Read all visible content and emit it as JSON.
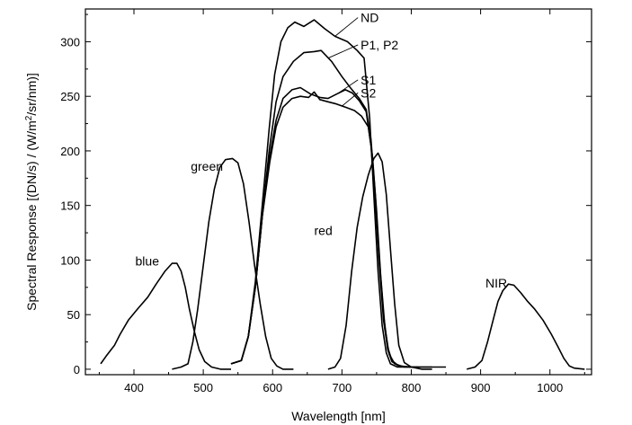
{
  "chart_data": {
    "type": "line",
    "xlabel": "Wavelength [nm]",
    "ylabel_parts": [
      "Spectral Response [(DN/s) / (W/m",
      "2",
      "/sr/nm)]"
    ],
    "xlim": [
      330,
      1060
    ],
    "ylim": [
      -5,
      330
    ],
    "xticks": [
      400,
      500,
      600,
      700,
      800,
      900,
      1000
    ],
    "yticks": [
      0,
      50,
      100,
      150,
      200,
      250,
      300
    ],
    "grid": false,
    "legend": "none",
    "color": "#000000",
    "series": [
      {
        "name": "blue",
        "points": [
          [
            352,
            5
          ],
          [
            360,
            12
          ],
          [
            372,
            22
          ],
          [
            380,
            32
          ],
          [
            392,
            45
          ],
          [
            405,
            55
          ],
          [
            420,
            66
          ],
          [
            432,
            78
          ],
          [
            445,
            90
          ],
          [
            455,
            97
          ],
          [
            462,
            97
          ],
          [
            468,
            90
          ],
          [
            474,
            75
          ],
          [
            480,
            55
          ],
          [
            487,
            35
          ],
          [
            494,
            18
          ],
          [
            502,
            7
          ],
          [
            512,
            2
          ],
          [
            525,
            0
          ],
          [
            540,
            0
          ]
        ]
      },
      {
        "name": "green",
        "points": [
          [
            455,
            0
          ],
          [
            468,
            2
          ],
          [
            478,
            5
          ],
          [
            485,
            25
          ],
          [
            492,
            55
          ],
          [
            500,
            95
          ],
          [
            508,
            135
          ],
          [
            516,
            165
          ],
          [
            524,
            185
          ],
          [
            532,
            192
          ],
          [
            542,
            193
          ],
          [
            550,
            189
          ],
          [
            558,
            170
          ],
          [
            566,
            135
          ],
          [
            574,
            95
          ],
          [
            582,
            60
          ],
          [
            590,
            30
          ],
          [
            598,
            10
          ],
          [
            606,
            3
          ],
          [
            615,
            0
          ],
          [
            630,
            0
          ]
        ]
      },
      {
        "name": "ND",
        "points": [
          [
            540,
            5
          ],
          [
            555,
            8
          ],
          [
            565,
            30
          ],
          [
            575,
            80
          ],
          [
            585,
            150
          ],
          [
            595,
            220
          ],
          [
            603,
            270
          ],
          [
            612,
            300
          ],
          [
            622,
            313
          ],
          [
            632,
            318
          ],
          [
            645,
            314
          ],
          [
            660,
            320
          ],
          [
            675,
            312
          ],
          [
            690,
            305
          ],
          [
            708,
            300
          ],
          [
            722,
            292
          ],
          [
            732,
            285
          ],
          [
            740,
            230
          ],
          [
            746,
            160
          ],
          [
            752,
            90
          ],
          [
            758,
            40
          ],
          [
            764,
            15
          ],
          [
            770,
            5
          ],
          [
            780,
            2
          ],
          [
            800,
            2
          ],
          [
            830,
            2
          ],
          [
            850,
            2
          ]
        ]
      },
      {
        "name": "P1, P2",
        "points": [
          [
            540,
            5
          ],
          [
            555,
            8
          ],
          [
            565,
            30
          ],
          [
            575,
            75
          ],
          [
            585,
            140
          ],
          [
            595,
            200
          ],
          [
            605,
            245
          ],
          [
            615,
            268
          ],
          [
            630,
            282
          ],
          [
            645,
            290
          ],
          [
            660,
            291
          ],
          [
            670,
            292
          ],
          [
            685,
            282
          ],
          [
            700,
            268
          ],
          [
            712,
            258
          ],
          [
            725,
            248
          ],
          [
            735,
            238
          ],
          [
            742,
            210
          ],
          [
            748,
            160
          ],
          [
            754,
            100
          ],
          [
            760,
            50
          ],
          [
            766,
            20
          ],
          [
            772,
            8
          ],
          [
            782,
            3
          ],
          [
            800,
            2
          ],
          [
            830,
            2
          ]
        ]
      },
      {
        "name": "S1",
        "points": [
          [
            540,
            5
          ],
          [
            555,
            8
          ],
          [
            565,
            30
          ],
          [
            575,
            75
          ],
          [
            585,
            140
          ],
          [
            596,
            195
          ],
          [
            605,
            228
          ],
          [
            615,
            248
          ],
          [
            628,
            256
          ],
          [
            640,
            258
          ],
          [
            655,
            252
          ],
          [
            668,
            249
          ],
          [
            680,
            248
          ],
          [
            692,
            252
          ],
          [
            705,
            256
          ],
          [
            715,
            253
          ],
          [
            725,
            246
          ],
          [
            735,
            236
          ],
          [
            742,
            205
          ],
          [
            748,
            155
          ],
          [
            754,
            95
          ],
          [
            760,
            45
          ],
          [
            766,
            18
          ],
          [
            772,
            7
          ],
          [
            782,
            3
          ],
          [
            800,
            2
          ]
        ]
      },
      {
        "name": "S2",
        "points": [
          [
            540,
            5
          ],
          [
            555,
            8
          ],
          [
            565,
            30
          ],
          [
            575,
            75
          ],
          [
            585,
            140
          ],
          [
            596,
            190
          ],
          [
            605,
            222
          ],
          [
            615,
            240
          ],
          [
            628,
            248
          ],
          [
            640,
            250
          ],
          [
            652,
            249
          ],
          [
            660,
            254
          ],
          [
            668,
            247
          ],
          [
            680,
            245
          ],
          [
            692,
            243
          ],
          [
            705,
            240
          ],
          [
            718,
            237
          ],
          [
            728,
            232
          ],
          [
            738,
            222
          ],
          [
            744,
            195
          ],
          [
            750,
            145
          ],
          [
            756,
            85
          ],
          [
            762,
            38
          ],
          [
            768,
            14
          ],
          [
            776,
            5
          ],
          [
            790,
            2
          ],
          [
            810,
            2
          ]
        ]
      },
      {
        "name": "red",
        "points": [
          [
            680,
            0
          ],
          [
            690,
            2
          ],
          [
            698,
            10
          ],
          [
            706,
            40
          ],
          [
            714,
            90
          ],
          [
            722,
            130
          ],
          [
            730,
            158
          ],
          [
            738,
            178
          ],
          [
            746,
            193
          ],
          [
            752,
            198
          ],
          [
            758,
            190
          ],
          [
            764,
            160
          ],
          [
            770,
            110
          ],
          [
            776,
            60
          ],
          [
            782,
            22
          ],
          [
            790,
            6
          ],
          [
            800,
            2
          ],
          [
            815,
            0
          ],
          [
            830,
            0
          ]
        ]
      },
      {
        "name": "NIR",
        "points": [
          [
            880,
            0
          ],
          [
            892,
            2
          ],
          [
            902,
            8
          ],
          [
            910,
            25
          ],
          [
            918,
            45
          ],
          [
            925,
            62
          ],
          [
            932,
            72
          ],
          [
            940,
            78
          ],
          [
            948,
            77
          ],
          [
            958,
            70
          ],
          [
            968,
            62
          ],
          [
            978,
            55
          ],
          [
            990,
            45
          ],
          [
            1002,
            32
          ],
          [
            1012,
            20
          ],
          [
            1020,
            10
          ],
          [
            1028,
            3
          ],
          [
            1035,
            1
          ],
          [
            1050,
            0
          ]
        ]
      }
    ],
    "annotations": [
      {
        "text": "ND",
        "pos": [
          727,
          318
        ],
        "point": [
          690,
          305
        ],
        "leader": true
      },
      {
        "text": "P1, P2",
        "pos": [
          727,
          293
        ],
        "point": [
          680,
          285
        ],
        "leader": true
      },
      {
        "text": "S1",
        "pos": [
          727,
          261
        ],
        "point": [
          695,
          253
        ],
        "leader": true
      },
      {
        "text": "S2",
        "pos": [
          727,
          249
        ],
        "point": [
          700,
          241
        ],
        "leader": true
      },
      {
        "text": "green",
        "pos": [
          482,
          182
        ],
        "leader": false
      },
      {
        "text": "blue",
        "pos": [
          402,
          95
        ],
        "leader": false
      },
      {
        "text": "red",
        "pos": [
          660,
          123
        ],
        "leader": false
      },
      {
        "text": "NIR",
        "pos": [
          907,
          75
        ],
        "leader": false
      }
    ]
  }
}
